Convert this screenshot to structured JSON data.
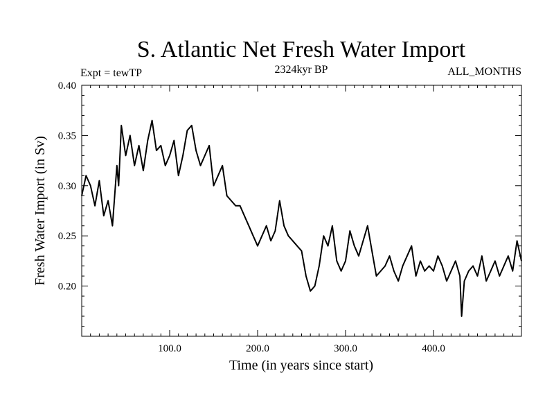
{
  "chart_data": {
    "type": "line",
    "title": "S. Atlantic Net Fresh Water Import",
    "subtitle_left": "Expt = tewTP",
    "subtitle_center": "2324kyr BP",
    "subtitle_right": "ALL_MONTHS",
    "xlabel": "Time (in years since start)",
    "ylabel": "Fresh Water Import (in Sv)",
    "xlim": [
      0,
      500
    ],
    "ylim": [
      0.15,
      0.4
    ],
    "x_ticks": [
      100,
      200,
      300,
      400
    ],
    "x_tick_labels": [
      "100.0",
      "200.0",
      "300.0",
      "400.0"
    ],
    "y_ticks": [
      0.2,
      0.25,
      0.3,
      0.35,
      0.4
    ],
    "y_tick_labels": [
      "0.20",
      "0.25",
      "0.30",
      "0.35",
      "0.40"
    ],
    "series": [
      {
        "name": "Fresh Water Import",
        "x": [
          0,
          5,
          10,
          15,
          20,
          25,
          30,
          35,
          40,
          42,
          45,
          50,
          55,
          60,
          65,
          70,
          75,
          80,
          85,
          90,
          95,
          100,
          105,
          110,
          115,
          120,
          125,
          130,
          135,
          140,
          145,
          150,
          155,
          160,
          165,
          170,
          175,
          180,
          185,
          190,
          195,
          200,
          205,
          210,
          215,
          220,
          225,
          230,
          235,
          240,
          245,
          250,
          255,
          260,
          265,
          270,
          275,
          280,
          285,
          290,
          295,
          300,
          305,
          310,
          315,
          320,
          325,
          330,
          335,
          340,
          345,
          350,
          355,
          360,
          365,
          370,
          375,
          380,
          385,
          390,
          395,
          400,
          405,
          410,
          415,
          420,
          425,
          430,
          432,
          435,
          440,
          445,
          450,
          455,
          460,
          465,
          470,
          475,
          480,
          485,
          490,
          495,
          500
        ],
        "values": [
          0.29,
          0.31,
          0.3,
          0.28,
          0.305,
          0.27,
          0.285,
          0.26,
          0.32,
          0.3,
          0.36,
          0.33,
          0.35,
          0.32,
          0.34,
          0.315,
          0.345,
          0.365,
          0.335,
          0.34,
          0.32,
          0.33,
          0.345,
          0.31,
          0.33,
          0.355,
          0.36,
          0.335,
          0.32,
          0.33,
          0.34,
          0.3,
          0.31,
          0.32,
          0.29,
          0.285,
          0.28,
          0.28,
          0.27,
          0.26,
          0.25,
          0.24,
          0.25,
          0.26,
          0.245,
          0.255,
          0.285,
          0.26,
          0.25,
          0.245,
          0.24,
          0.235,
          0.21,
          0.195,
          0.2,
          0.22,
          0.25,
          0.24,
          0.26,
          0.225,
          0.215,
          0.225,
          0.255,
          0.24,
          0.23,
          0.245,
          0.26,
          0.235,
          0.21,
          0.215,
          0.22,
          0.23,
          0.215,
          0.205,
          0.22,
          0.23,
          0.24,
          0.21,
          0.225,
          0.215,
          0.22,
          0.215,
          0.23,
          0.22,
          0.205,
          0.215,
          0.225,
          0.21,
          0.17,
          0.205,
          0.215,
          0.22,
          0.21,
          0.23,
          0.205,
          0.215,
          0.225,
          0.21,
          0.22,
          0.23,
          0.215,
          0.245,
          0.225
        ]
      }
    ]
  }
}
